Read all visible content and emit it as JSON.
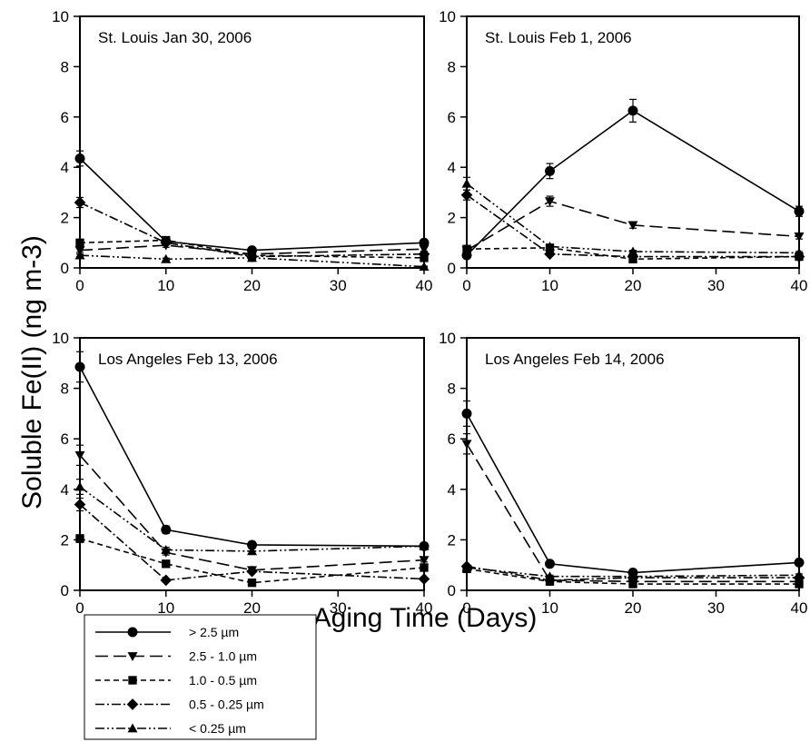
{
  "figure": {
    "ylabel": "Soluble Fe(II) (ng m-3)",
    "xlabel": "Aging Time (Days)"
  },
  "legend": [
    {
      "label": "> 2.5 µm"
    },
    {
      "label": "2.5 - 1.0 µm"
    },
    {
      "label": "1.0 - 0.5 µm"
    },
    {
      "label": "0.5 - 0.25 µm"
    },
    {
      "label": "< 0.25 µm"
    }
  ],
  "chart_data": [
    {
      "type": "line",
      "title": "St. Louis Jan 30, 2006",
      "x": [
        0,
        10,
        20,
        40
      ],
      "xticks": [
        0,
        10,
        20,
        30,
        40
      ],
      "yticks": [
        0,
        2,
        4,
        6,
        8,
        10
      ],
      "xlim": [
        0,
        40
      ],
      "ylim": [
        0,
        10
      ],
      "series": [
        {
          "name": "> 2.5 µm",
          "values": [
            4.35,
            1.05,
            0.7,
            1.0
          ],
          "errors": [
            0.3,
            0.1,
            0.08,
            0.1
          ]
        },
        {
          "name": "2.5 - 1.0 µm",
          "values": [
            0.7,
            0.9,
            0.55,
            0.75
          ],
          "errors": [
            0.08,
            0.08,
            0.05,
            0.08
          ]
        },
        {
          "name": "1.0 - 0.5 µm",
          "values": [
            1.0,
            1.1,
            0.5,
            0.4
          ],
          "errors": [
            0.08,
            0.08,
            0.05,
            0.05
          ]
        },
        {
          "name": "0.5 - 0.25 µm",
          "values": [
            2.6,
            1.0,
            0.45,
            0.55
          ],
          "errors": [
            0.2,
            0.08,
            0.05,
            0.05
          ]
        },
        {
          "name": "< 0.25 µm",
          "values": [
            0.5,
            0.35,
            0.4,
            0.05
          ],
          "errors": [
            0.05,
            0.04,
            0.04,
            0.02
          ]
        }
      ]
    },
    {
      "type": "line",
      "title": "St. Louis Feb 1, 2006",
      "x": [
        0,
        10,
        20,
        40
      ],
      "xticks": [
        0,
        10,
        20,
        30,
        40
      ],
      "yticks": [
        0,
        2,
        4,
        6,
        8,
        10
      ],
      "xlim": [
        0,
        40
      ],
      "ylim": [
        0,
        10
      ],
      "series": [
        {
          "name": "> 2.5 µm",
          "values": [
            0.5,
            3.85,
            6.25,
            2.25
          ],
          "errors": [
            0.05,
            0.3,
            0.45,
            0.2
          ]
        },
        {
          "name": "2.5 - 1.0 µm",
          "values": [
            0.7,
            2.65,
            1.7,
            1.25
          ],
          "errors": [
            0.05,
            0.2,
            0.12,
            0.1
          ]
        },
        {
          "name": "1.0 - 0.5 µm",
          "values": [
            0.75,
            0.8,
            0.35,
            0.45
          ],
          "errors": [
            0.05,
            0.05,
            0.04,
            0.04
          ]
        },
        {
          "name": "0.5 - 0.25 µm",
          "values": [
            2.9,
            0.55,
            0.45,
            0.45
          ],
          "errors": [
            0.2,
            0.05,
            0.04,
            0.04
          ]
        },
        {
          "name": "< 0.25 µm",
          "values": [
            3.35,
            0.85,
            0.65,
            0.6
          ],
          "errors": [
            0.25,
            0.06,
            0.05,
            0.05
          ]
        }
      ]
    },
    {
      "type": "line",
      "title": "Los Angeles Feb 13, 2006",
      "x": [
        0,
        10,
        20,
        40
      ],
      "xticks": [
        0,
        10,
        20,
        30,
        40
      ],
      "yticks": [
        0,
        2,
        4,
        6,
        8,
        10
      ],
      "xlim": [
        0,
        40
      ],
      "ylim": [
        0,
        10
      ],
      "series": [
        {
          "name": "> 2.5 µm",
          "values": [
            8.85,
            2.4,
            1.8,
            1.75
          ],
          "errors": [
            0.6,
            0.15,
            0.12,
            0.12
          ]
        },
        {
          "name": "2.5 - 1.0 µm",
          "values": [
            5.35,
            1.5,
            0.8,
            1.2
          ],
          "errors": [
            0.4,
            0.1,
            0.06,
            0.08
          ]
        },
        {
          "name": "1.0 - 0.5 µm",
          "values": [
            2.05,
            1.05,
            0.3,
            0.9
          ],
          "errors": [
            0.15,
            0.08,
            0.04,
            0.06
          ]
        },
        {
          "name": "0.5 - 0.25 µm",
          "values": [
            3.4,
            0.4,
            0.75,
            0.45
          ],
          "errors": [
            0.25,
            0.04,
            0.05,
            0.04
          ]
        },
        {
          "name": "< 0.25 µm",
          "values": [
            4.1,
            1.6,
            1.55,
            1.75
          ],
          "errors": [
            0.3,
            0.1,
            0.1,
            0.12
          ]
        }
      ]
    },
    {
      "type": "line",
      "title": "Los Angeles Feb 14, 2006",
      "x": [
        0,
        10,
        20,
        40
      ],
      "xticks": [
        0,
        10,
        20,
        30,
        40
      ],
      "yticks": [
        0,
        2,
        4,
        6,
        8,
        10
      ],
      "xlim": [
        0,
        40
      ],
      "ylim": [
        0,
        10
      ],
      "series": [
        {
          "name": "> 2.5 µm",
          "values": [
            7.0,
            1.05,
            0.7,
            1.1
          ],
          "errors": [
            0.5,
            0.08,
            0.05,
            0.08
          ]
        },
        {
          "name": "2.5 - 1.0 µm",
          "values": [
            5.8,
            0.4,
            0.35,
            0.35
          ],
          "errors": [
            0.4,
            0.04,
            0.04,
            0.04
          ]
        },
        {
          "name": "1.0 - 0.5 µm",
          "values": [
            0.85,
            0.35,
            0.25,
            0.25
          ],
          "errors": [
            0.06,
            0.04,
            0.03,
            0.03
          ]
        },
        {
          "name": "0.5 - 0.25 µm",
          "values": [
            0.95,
            0.4,
            0.5,
            0.5
          ],
          "errors": [
            0.06,
            0.04,
            0.04,
            0.04
          ]
        },
        {
          "name": "< 0.25 µm",
          "values": [
            0.9,
            0.55,
            0.55,
            0.6
          ],
          "errors": [
            0.06,
            0.05,
            0.05,
            0.05
          ]
        }
      ]
    }
  ]
}
